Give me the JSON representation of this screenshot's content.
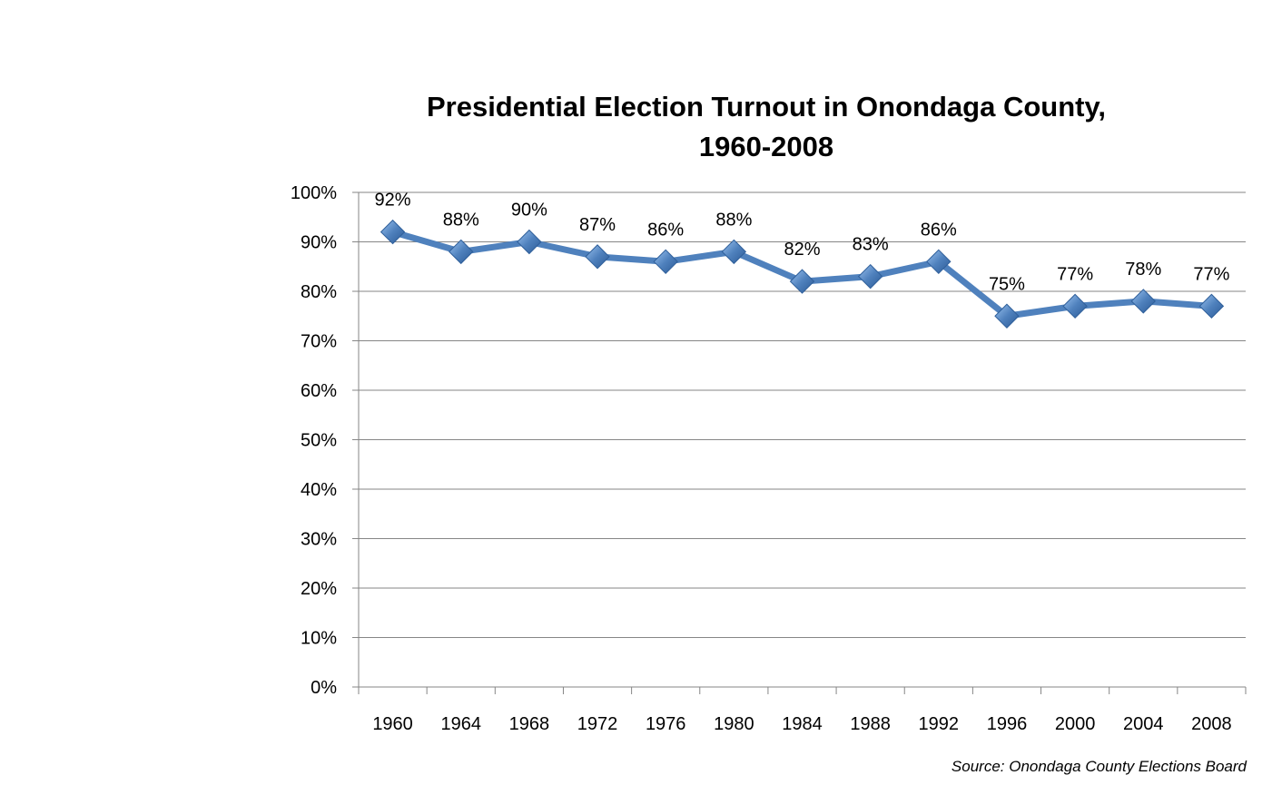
{
  "chart_data": {
    "type": "line",
    "title_line1": "Presidential Election Turnout in Onondaga County,",
    "title_line2": "1960-2008",
    "categories": [
      "1960",
      "1964",
      "1968",
      "1972",
      "1976",
      "1980",
      "1984",
      "1988",
      "1992",
      "1996",
      "2000",
      "2004",
      "2008"
    ],
    "series": [
      {
        "values": [
          92,
          88,
          90,
          87,
          86,
          88,
          82,
          83,
          86,
          75,
          77,
          78,
          77
        ],
        "labels": [
          "92%",
          "88%",
          "90%",
          "87%",
          "86%",
          "88%",
          "82%",
          "83%",
          "86%",
          "75%",
          "77%",
          "78%",
          "77%"
        ],
        "color": "#4F81BD"
      }
    ],
    "ylim": [
      0,
      100
    ],
    "ytick_labels": [
      "0%",
      "10%",
      "20%",
      "30%",
      "40%",
      "50%",
      "60%",
      "70%",
      "80%",
      "90%",
      "100%"
    ],
    "grid": true,
    "source": "Source: Onondaga County  Elections Board"
  }
}
